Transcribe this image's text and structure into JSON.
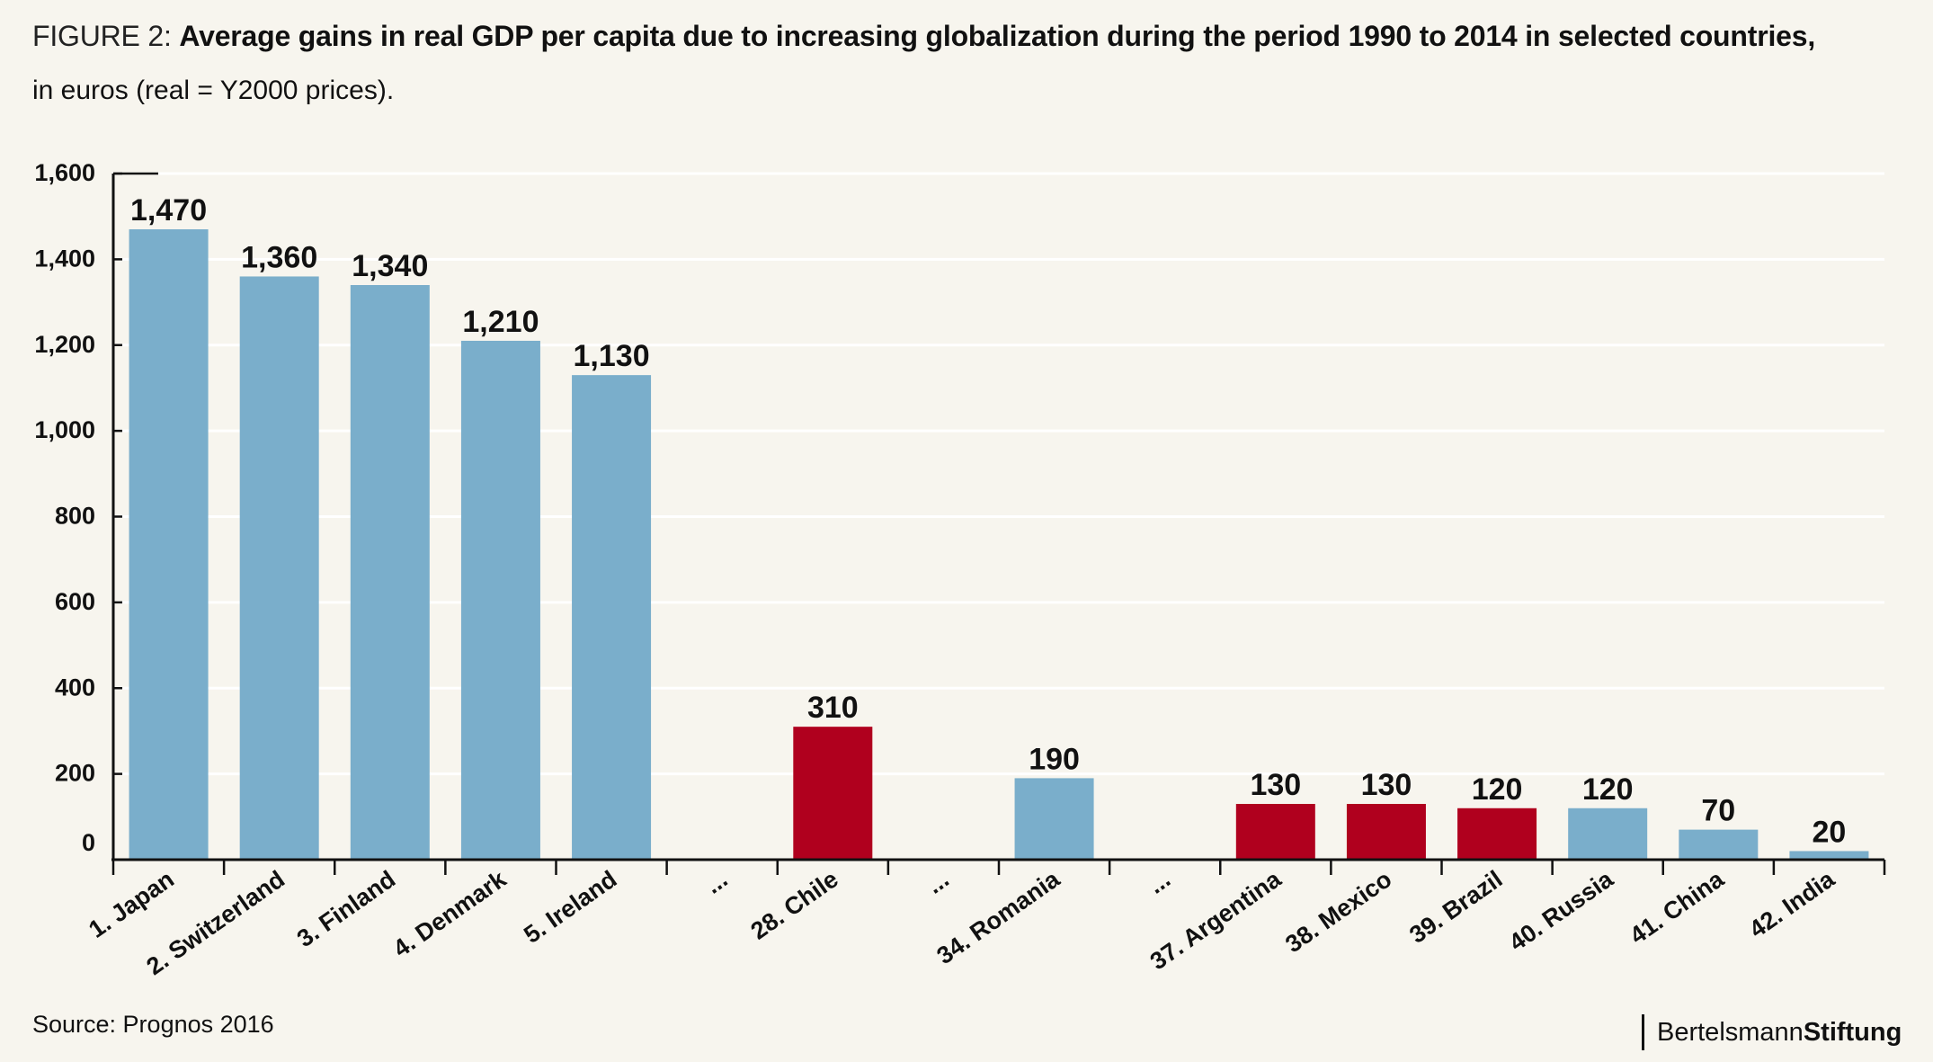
{
  "title": {
    "prefix": "FIGURE 2: ",
    "main": "Average gains in real GDP per capita due to increasing globalization during the period 1990 to 2014 in selected countries,",
    "line2": "in euros (real = Y2000 prices)."
  },
  "source": "Source: Prognos 2016",
  "brand": {
    "part1": "Bertelsmann",
    "part2": "Stiftung"
  },
  "colors": {
    "blue": "#7aaecb",
    "red": "#b0001e",
    "background": "#f7f5ee"
  },
  "chart_data": {
    "type": "bar",
    "title": "Average gains in real GDP per capita due to increasing globalization during the period 1990 to 2014 in selected countries, in euros (real = Y2000 prices).",
    "xlabel": "",
    "ylabel": "",
    "ylim": [
      0,
      1600
    ],
    "yticks": [
      0,
      200,
      400,
      600,
      800,
      1000,
      1200,
      1400,
      1600
    ],
    "ytick_labels": [
      "0",
      "200",
      "400",
      "600",
      "800",
      "1,000",
      "1,200",
      "1,400",
      "1,600"
    ],
    "grid": true,
    "categories": [
      "1. Japan",
      "2. Switzerland",
      "3. Finland",
      "4. Denmark",
      "5. Ireland",
      "...",
      "28. Chile",
      "...",
      "34. Romania",
      "...",
      "37. Argentina",
      "38. Mexico",
      "39. Brazil",
      "40. Russia",
      "41. China",
      "42. India"
    ],
    "values": [
      1470,
      1360,
      1340,
      1210,
      1130,
      null,
      310,
      null,
      190,
      null,
      130,
      130,
      120,
      120,
      70,
      20
    ],
    "value_labels": [
      "1,470",
      "1,360",
      "1,340",
      "1,210",
      "1,130",
      "",
      "310",
      "",
      "190",
      "",
      "130",
      "130",
      "120",
      "120",
      "70",
      "20"
    ],
    "bar_colors": [
      "blue",
      "blue",
      "blue",
      "blue",
      "blue",
      "",
      "red",
      "",
      "blue",
      "",
      "red",
      "red",
      "red",
      "blue",
      "blue",
      "blue"
    ]
  }
}
